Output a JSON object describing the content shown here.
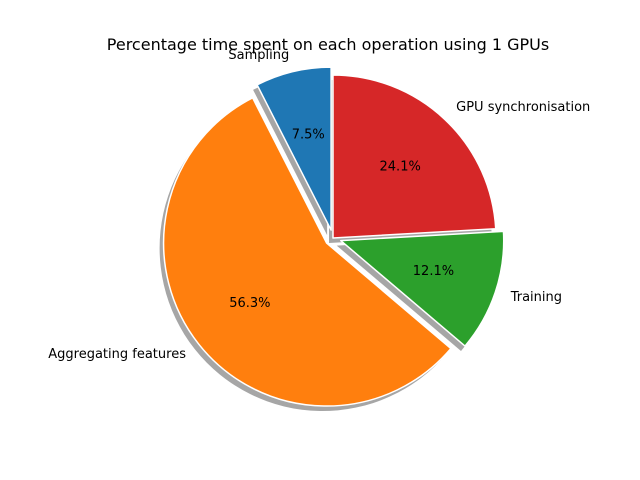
{
  "chart_data": {
    "type": "pie",
    "title": "Percentage time spent on each operation using 1 GPUs",
    "slices": [
      {
        "label": "Sampling",
        "value": 7.5,
        "pct_label": "7.5%",
        "color": "#1f77b4",
        "explode": 0.05
      },
      {
        "label": "Aggregating features",
        "value": 56.3,
        "pct_label": "56.3%",
        "color": "#ff7f0e",
        "explode": 0.05
      },
      {
        "label": "Training",
        "value": 12.1,
        "pct_label": "12.1%",
        "color": "#2ca02c",
        "explode": 0.05
      },
      {
        "label": "GPU synchronisation",
        "value": 24.1,
        "pct_label": "24.1%",
        "color": "#d62728",
        "explode": 0.0
      }
    ],
    "start_angle": 90,
    "direction": "counterclockwise",
    "shadow": true
  }
}
